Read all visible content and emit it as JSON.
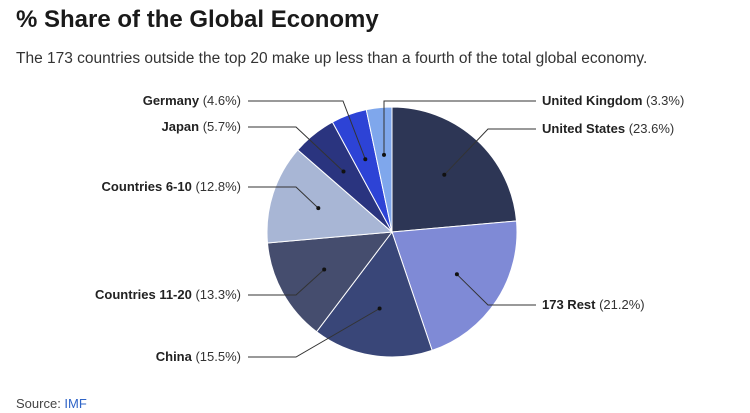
{
  "title": "% Share of the Global Economy",
  "subtitle": "The 173 countries outside the top 20 make up less than a fourth of the total global economy.",
  "source": {
    "prefix": "Source: ",
    "link_text": "IMF"
  },
  "chart_data": {
    "type": "pie",
    "slices": [
      {
        "label": "United States",
        "pct_text": "(23.6%)",
        "value": 23.6,
        "color": "#2d3655"
      },
      {
        "label": "173 Rest",
        "pct_text": "(21.2%)",
        "value": 21.2,
        "color": "#7f8ad6"
      },
      {
        "label": "China",
        "pct_text": "(15.5%)",
        "value": 15.5,
        "color": "#394678"
      },
      {
        "label": "Countries 11-20",
        "pct_text": "(13.3%)",
        "value": 13.3,
        "color": "#454d6e"
      },
      {
        "label": "Countries 6-10",
        "pct_text": "(12.8%)",
        "value": 12.8,
        "color": "#a8b6d5"
      },
      {
        "label": "Japan",
        "pct_text": "(5.7%)",
        "value": 5.7,
        "color": "#2a347f"
      },
      {
        "label": "Germany",
        "pct_text": "(4.6%)",
        "value": 4.6,
        "color": "#2d43d6"
      },
      {
        "label": "United Kingdom",
        "pct_text": "(3.3%)",
        "value": 3.3,
        "color": "#7fa7ec"
      }
    ]
  }
}
